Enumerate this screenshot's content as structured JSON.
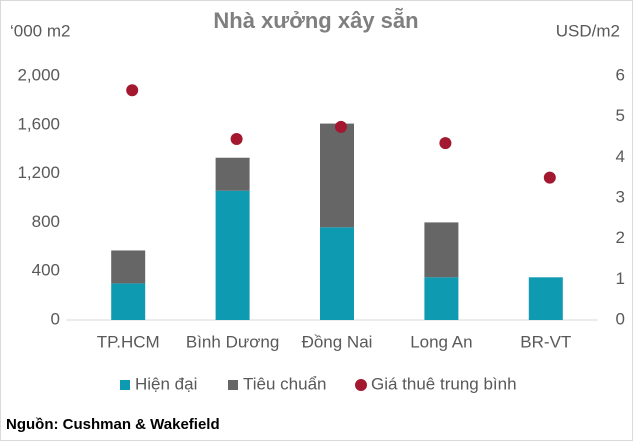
{
  "chart_data": {
    "type": "bar",
    "stacked": true,
    "title": "Nhà xưởng xây sẵn",
    "y_label": "‘000 m2",
    "y2_label": "USD/m2",
    "source": "Nguồn: Cushman & Wakefield",
    "categories": [
      "TP.HCM",
      "Bình Dương",
      "Đồng Nai",
      "Long An",
      "BR-VT"
    ],
    "series": [
      {
        "name": "Hiện đại",
        "color": "#0e9ab1",
        "values": [
          300,
          1060,
          760,
          350,
          350
        ]
      },
      {
        "name": "Tiêu chuẩn",
        "color": "#666666",
        "values": [
          270,
          270,
          850,
          450,
          0
        ]
      },
      {
        "name": "Giá thuê trung bình",
        "color": "#a3172f",
        "type": "scatter",
        "axis": "y2",
        "values": [
          5.65,
          4.45,
          4.75,
          4.35,
          3.5
        ]
      }
    ],
    "ylim": [
      0,
      2000
    ],
    "yticks": [
      0,
      400,
      800,
      {
        "value": 1200,
        "label": "1,200"
      },
      {
        "value": 1600,
        "label": "1,600"
      },
      {
        "value": 2000,
        "label": "2,000"
      }
    ],
    "y2lim": [
      0,
      6
    ],
    "y2ticks": [
      0,
      1,
      2,
      3,
      4,
      5,
      6
    ],
    "grid": false
  }
}
